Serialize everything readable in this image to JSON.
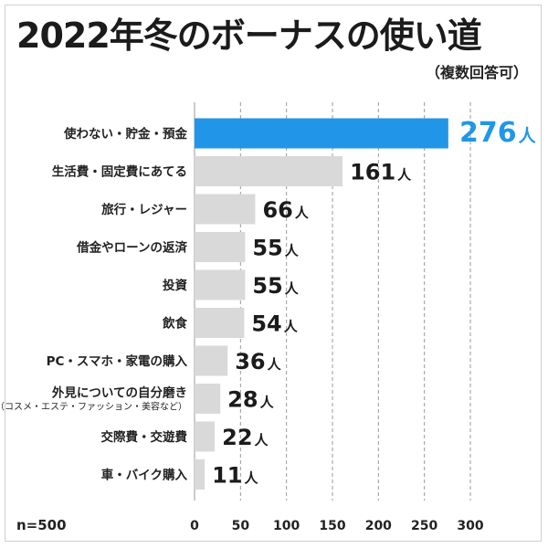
{
  "header": {
    "title": "2022年冬のボーナスの使い道",
    "subtitle": "（複数回答可）"
  },
  "footer": {
    "sample_size": "n=500"
  },
  "colors": {
    "highlight": "#2196e8",
    "bar": "#d9d9d9",
    "grid": "#9a9a9a",
    "text": "#1b1b1b"
  },
  "chart_data": {
    "type": "bar",
    "orientation": "horizontal",
    "title": "2022年冬のボーナスの使い道",
    "subtitle": "（複数回答可）",
    "unit": "人",
    "categories": [
      "使わない・貯金・預金",
      "生活費・固定費にあてる",
      "旅行・レジャー",
      "借金やローンの返済",
      "投資",
      "飲食",
      "PC・スマホ・家電の購入",
      "外見についての自分磨き",
      "交際費・交遊費",
      "車・バイク購入"
    ],
    "category_sublabels": [
      "",
      "",
      "",
      "",
      "",
      "",
      "",
      "（コスメ・エステ・ファッション・美容など）",
      "",
      ""
    ],
    "values": [
      276,
      161,
      66,
      55,
      55,
      54,
      36,
      28,
      22,
      11
    ],
    "highlight_index": 0,
    "xlim": [
      0,
      300
    ],
    "xticks": [
      0,
      50,
      100,
      150,
      200,
      250,
      300
    ],
    "grid": "vertical dashed",
    "note": "n=500"
  }
}
